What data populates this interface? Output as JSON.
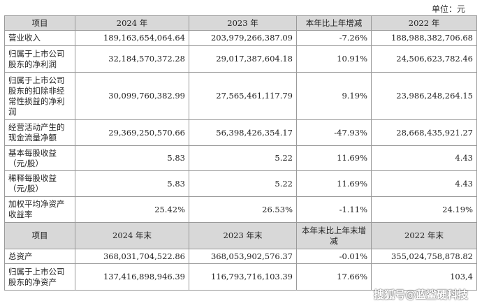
{
  "unit_label": "单位：元",
  "header1": [
    "项目",
    "2024 年",
    "2023 年",
    "本年比上年增减",
    "2022 年"
  ],
  "rows1": [
    [
      "营业收入",
      "189,163,654,064.64",
      "203,979,266,387.09",
      "-7.26%",
      "188,988,382,706.68"
    ],
    [
      "归属于上市公司股东的净利润",
      "32,184,570,372.28",
      "29,017,387,604.18",
      "10.91%",
      "24,506,623,782.46"
    ],
    [
      "归属于上市公司股东的扣除非经常性损益的净利润",
      "30,099,760,382.99",
      "27,565,461,117.79",
      "9.19%",
      "23,986,248,264.15"
    ],
    [
      "经营活动产生的现金流量净额",
      "29,369,250,570.66",
      "56,398,426,354.17",
      "-47.93%",
      "28,668,435,921.27"
    ],
    [
      "基本每股收益（元/股）",
      "5.83",
      "5.22",
      "11.69%",
      "4.43"
    ],
    [
      "稀释每股收益（元/股）",
      "5.83",
      "5.22",
      "11.69%",
      "4.43"
    ],
    [
      "加权平均净资产收益率",
      "25.42%",
      "26.53%",
      "-1.11%",
      "24.19%"
    ]
  ],
  "header2": [
    "项目",
    "2024 年末",
    "2023 年末",
    "本年末比上年末增减",
    "2022 年末"
  ],
  "rows2": [
    [
      "总资产",
      "368,031,704,522.86",
      "368,053,902,576.37",
      "-0.01%",
      "355,024,758,878.82"
    ],
    [
      "归属于上市公司股东的净资产",
      "137,416,898,946.39",
      "116,793,716,103.39",
      "17.66%",
      "103,4"
    ]
  ],
  "watermark": "搜狐号@蓝鲨硬科技"
}
